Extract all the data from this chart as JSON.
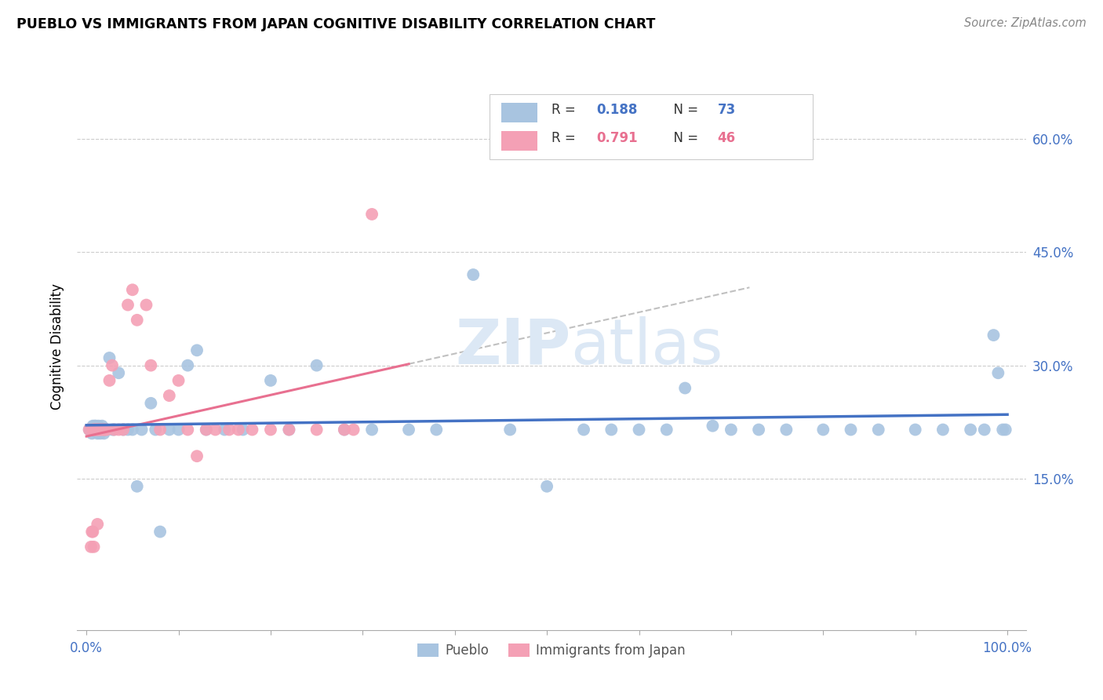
{
  "title": "PUEBLO VS IMMIGRANTS FROM JAPAN COGNITIVE DISABILITY CORRELATION CHART",
  "source": "Source: ZipAtlas.com",
  "ylabel": "Cognitive Disability",
  "xlim": [
    -0.01,
    1.02
  ],
  "ylim": [
    -0.05,
    0.7
  ],
  "yticks": [
    0.15,
    0.3,
    0.45,
    0.6
  ],
  "ytick_labels": [
    "15.0%",
    "30.0%",
    "45.0%",
    "60.0%"
  ],
  "legend_R1": "R = 0.188",
  "legend_N1": "N = 73",
  "legend_R2": "R = 0.791",
  "legend_N2": "N = 46",
  "pueblo_color": "#a8c4e0",
  "japan_color": "#f4a0b5",
  "pueblo_line_color": "#4472c4",
  "japan_line_color": "#e87090",
  "text_color": "#4472c4",
  "label_color": "#333333",
  "watermark_color": "#dce8f5",
  "pueblo_x": [
    0.003,
    0.005,
    0.006,
    0.007,
    0.007,
    0.008,
    0.008,
    0.009,
    0.009,
    0.01,
    0.01,
    0.011,
    0.012,
    0.012,
    0.013,
    0.014,
    0.015,
    0.015,
    0.016,
    0.017,
    0.018,
    0.019,
    0.02,
    0.022,
    0.025,
    0.028,
    0.03,
    0.035,
    0.04,
    0.045,
    0.05,
    0.055,
    0.06,
    0.07,
    0.075,
    0.08,
    0.09,
    0.1,
    0.11,
    0.12,
    0.13,
    0.15,
    0.17,
    0.2,
    0.22,
    0.25,
    0.28,
    0.31,
    0.35,
    0.38,
    0.42,
    0.46,
    0.5,
    0.54,
    0.57,
    0.6,
    0.63,
    0.65,
    0.68,
    0.7,
    0.73,
    0.76,
    0.8,
    0.83,
    0.86,
    0.9,
    0.93,
    0.96,
    0.975,
    0.985,
    0.99,
    0.995,
    0.998
  ],
  "pueblo_y": [
    0.215,
    0.215,
    0.21,
    0.22,
    0.215,
    0.215,
    0.215,
    0.22,
    0.215,
    0.215,
    0.22,
    0.215,
    0.21,
    0.215,
    0.22,
    0.215,
    0.21,
    0.215,
    0.215,
    0.22,
    0.215,
    0.21,
    0.215,
    0.215,
    0.31,
    0.215,
    0.215,
    0.29,
    0.215,
    0.215,
    0.215,
    0.14,
    0.215,
    0.25,
    0.215,
    0.08,
    0.215,
    0.215,
    0.3,
    0.32,
    0.215,
    0.215,
    0.215,
    0.28,
    0.215,
    0.3,
    0.215,
    0.215,
    0.215,
    0.215,
    0.42,
    0.215,
    0.14,
    0.215,
    0.215,
    0.215,
    0.215,
    0.27,
    0.22,
    0.215,
    0.215,
    0.215,
    0.215,
    0.215,
    0.215,
    0.215,
    0.215,
    0.215,
    0.215,
    0.34,
    0.29,
    0.215,
    0.215
  ],
  "japan_x": [
    0.003,
    0.005,
    0.006,
    0.007,
    0.007,
    0.008,
    0.008,
    0.009,
    0.01,
    0.011,
    0.012,
    0.012,
    0.013,
    0.014,
    0.015,
    0.016,
    0.018,
    0.019,
    0.02,
    0.022,
    0.025,
    0.028,
    0.03,
    0.035,
    0.04,
    0.045,
    0.05,
    0.055,
    0.065,
    0.07,
    0.08,
    0.09,
    0.1,
    0.11,
    0.12,
    0.13,
    0.14,
    0.155,
    0.165,
    0.18,
    0.2,
    0.22,
    0.25,
    0.28,
    0.29,
    0.31
  ],
  "japan_y": [
    0.215,
    0.06,
    0.08,
    0.215,
    0.08,
    0.215,
    0.06,
    0.215,
    0.215,
    0.215,
    0.215,
    0.09,
    0.215,
    0.215,
    0.215,
    0.215,
    0.215,
    0.215,
    0.215,
    0.215,
    0.28,
    0.3,
    0.215,
    0.215,
    0.215,
    0.38,
    0.4,
    0.36,
    0.38,
    0.3,
    0.215,
    0.26,
    0.28,
    0.215,
    0.18,
    0.215,
    0.215,
    0.215,
    0.215,
    0.215,
    0.215,
    0.215,
    0.215,
    0.215,
    0.215,
    0.5
  ]
}
